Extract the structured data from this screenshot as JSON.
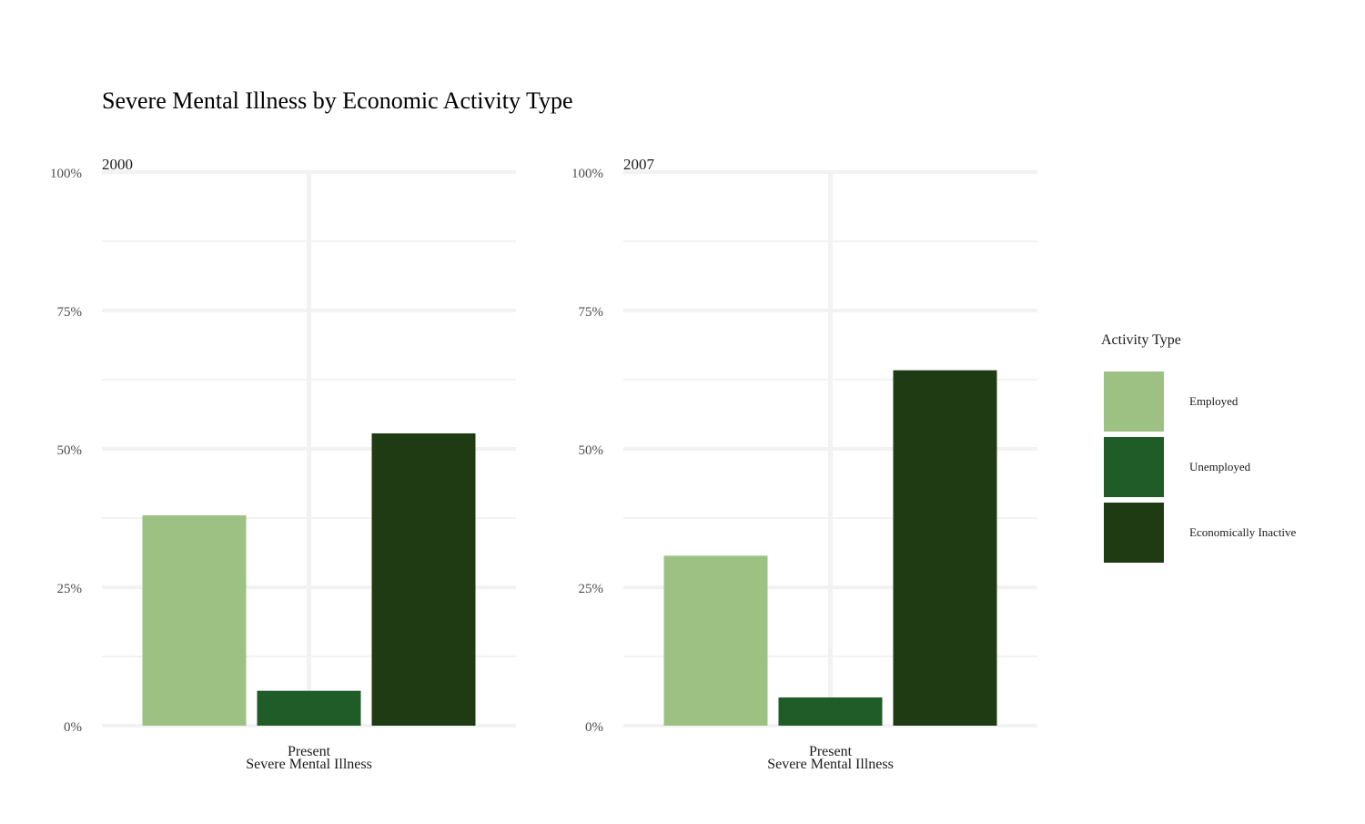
{
  "chart_data": {
    "type": "bar",
    "title": "Severe Mental Illness by Economic Activity Type",
    "x_category": "Present",
    "xlabel": "Severe Mental Illness",
    "ylabel": "",
    "ylim": [
      0,
      1
    ],
    "y_ticks": [
      0,
      0.25,
      0.5,
      0.75,
      1.0
    ],
    "y_tick_labels": [
      "0%",
      "25%",
      "50%",
      "75%",
      "100%"
    ],
    "grid": true,
    "legend": {
      "title": "Activity Type",
      "placement": "right",
      "entries": [
        {
          "name": "Employed",
          "color": "#9dc183"
        },
        {
          "name": "Unemployed",
          "color": "#1f5c28"
        },
        {
          "name": "Economically Inactive",
          "color": "#1f3b14"
        }
      ]
    },
    "facets": [
      {
        "label": "2000",
        "series": [
          {
            "name": "Employed",
            "values": [
              0.38
            ]
          },
          {
            "name": "Unemployed",
            "values": [
              0.063
            ]
          },
          {
            "name": "Economically Inactive",
            "values": [
              0.528
            ]
          }
        ]
      },
      {
        "label": "2007",
        "series": [
          {
            "name": "Employed",
            "values": [
              0.307
            ]
          },
          {
            "name": "Unemployed",
            "values": [
              0.051
            ]
          },
          {
            "name": "Economically Inactive",
            "values": [
              0.642
            ]
          }
        ]
      }
    ]
  }
}
